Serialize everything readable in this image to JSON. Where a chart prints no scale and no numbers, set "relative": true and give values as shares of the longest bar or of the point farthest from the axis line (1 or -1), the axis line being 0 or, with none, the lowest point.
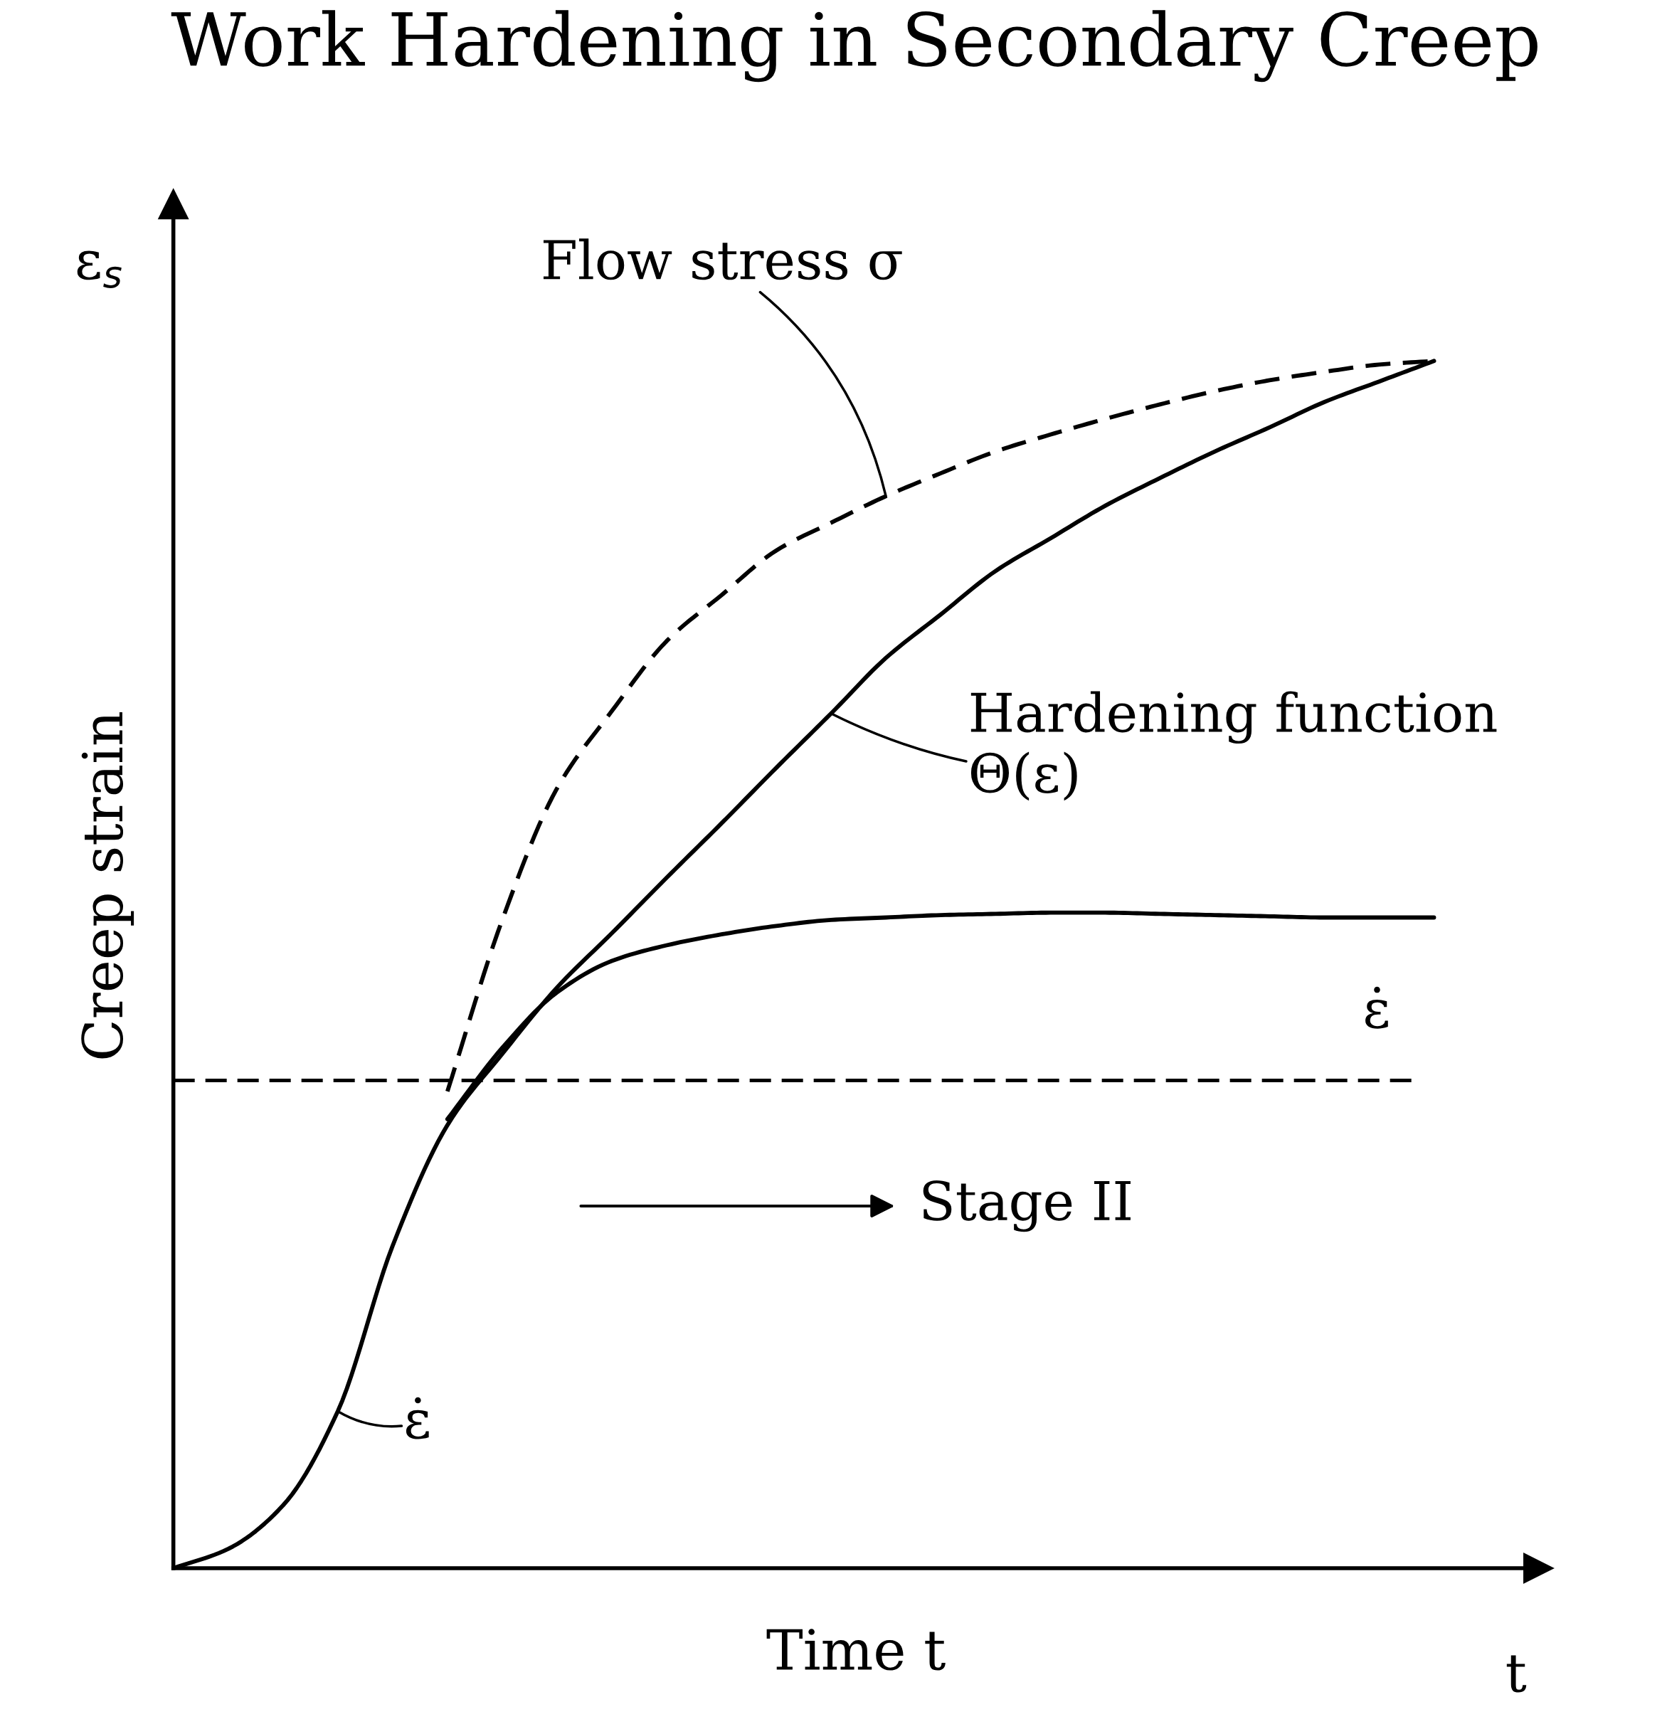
{
  "chart_data": {
    "type": "line",
    "title": "Work Hardening in Secondary Creep",
    "xlabel": "Time t",
    "ylabel": "Creep strain",
    "relative": true,
    "legend": false,
    "marker": "none",
    "categories": [
      null,
      null,
      null,
      null,
      null,
      null,
      null,
      null,
      null,
      null,
      null,
      null,
      null,
      null,
      null,
      null,
      null,
      null,
      null,
      null,
      null,
      null,
      null,
      null
    ],
    "series": [
      {
        "color": "#000000",
        "line_style": "solid",
        "values": [
          0,
          0.016,
          0.052,
          0.13,
          0.267,
          0.367,
          0.426,
          0.481,
          0.526,
          0.572,
          0.617,
          0.663,
          0.708,
          0.754,
          0.79,
          0.826,
          0.853,
          0.88,
          0.903,
          0.925,
          0.945,
          0.966,
          0.983,
          1.0
        ]
      },
      {
        "color": "#000000",
        "line_style": "solid",
        "values": [
          null,
          null,
          null,
          null,
          null,
          0.372,
          0.431,
          0.477,
          0.503,
          0.516,
          0.525,
          0.532,
          0.537,
          0.539,
          0.541,
          0.542,
          0.543,
          0.543,
          0.542,
          0.541,
          0.54,
          0.539,
          0.539,
          0.539
        ]
      },
      {
        "color": "#000000",
        "line_style": "dashed",
        "values": [
          null,
          null,
          null,
          null,
          null,
          0.395,
          0.537,
          0.646,
          0.71,
          0.768,
          0.806,
          0.843,
          0.866,
          0.888,
          0.907,
          0.925,
          0.939,
          0.952,
          0.964,
          0.975,
          0.984,
          0.991,
          0.997,
          1.0
        ]
      }
    ],
    "ref_lines": [
      {
        "axis": "y",
        "value": 0.404,
        "color": "#000000",
        "line_style": "dashed"
      }
    ],
    "annotations": [
      "Flow stress σ",
      "Hardening function\nΘ(ε)",
      "ε̇",
      "ε̇",
      "Stage II",
      "ε$_{s}$",
      "t"
    ]
  }
}
